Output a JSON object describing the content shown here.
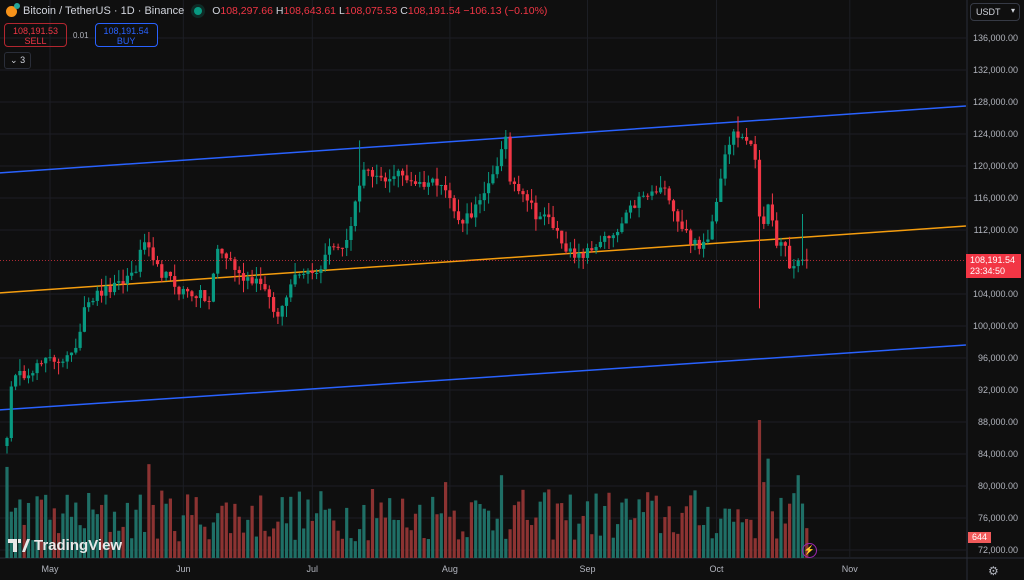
{
  "header": {
    "symbol": "Bitcoin / TetherUS · 1D · Binance",
    "open_label": "O",
    "open": "108,297.66",
    "high_label": "H",
    "high": "108,643.61",
    "low_label": "L",
    "low": "108,075.53",
    "close_label": "C",
    "close": "108,191.54",
    "change": "−106.13 (−0.10%)"
  },
  "trade": {
    "sell_price": "108,191.53",
    "sell_label": "SELL",
    "spread": "0.01",
    "buy_price": "108,191.54",
    "buy_label": "BUY"
  },
  "indicators_toggle": "3",
  "currency": "USDT",
  "price_axis": [
    "136,000.00",
    "132,000.00",
    "128,000.00",
    "124,000.00",
    "120,000.00",
    "116,000.00",
    "112,000.00",
    "104,000.00",
    "100,000.00",
    "96,000.00",
    "92,000.00",
    "88,000.00",
    "84,000.00",
    "80,000.00",
    "76,000.00",
    "72,000.00"
  ],
  "current_price": {
    "price": "108,191.54",
    "countdown": "23:34:50"
  },
  "volume_badge": "644",
  "time_axis": [
    {
      "label": "May",
      "day": 10
    },
    {
      "label": "Jun",
      "day": 41
    },
    {
      "label": "Jul",
      "day": 71
    },
    {
      "label": "Aug",
      "day": 103
    },
    {
      "label": "Sep",
      "day": 135
    },
    {
      "label": "Oct",
      "day": 165
    },
    {
      "label": "Nov",
      "day": 196
    }
  ],
  "logo": "TradingView",
  "colors": {
    "up": "#089981",
    "down": "#f23645",
    "vol_up": "#1f6f66",
    "vol_down": "#8c3332",
    "channel": "#2962ff",
    "midline": "#f59d0e",
    "bg": "#0f0f0f"
  },
  "chart_data": {
    "type": "candlestick",
    "price_range": [
      72000,
      140500
    ],
    "current_price": 108191.54,
    "close_keypoints": [
      [
        0,
        86000
      ],
      [
        1,
        93000
      ],
      [
        5,
        94500
      ],
      [
        10,
        95700
      ],
      [
        15,
        96000
      ],
      [
        17,
        99500
      ],
      [
        18,
        103000
      ],
      [
        22,
        104200
      ],
      [
        26,
        105000
      ],
      [
        30,
        107200
      ],
      [
        32,
        110700
      ],
      [
        34,
        107600
      ],
      [
        38,
        105700
      ],
      [
        40,
        104500
      ],
      [
        45,
        103800
      ],
      [
        47,
        103000
      ],
      [
        49,
        109500
      ],
      [
        52,
        108200
      ],
      [
        54,
        106300
      ],
      [
        59,
        105700
      ],
      [
        61,
        103000
      ],
      [
        63,
        101000
      ],
      [
        66,
        105700
      ],
      [
        68,
        107000
      ],
      [
        73,
        107000
      ],
      [
        74,
        109500
      ],
      [
        79,
        110200
      ],
      [
        81,
        115700
      ],
      [
        83,
        119000
      ],
      [
        87,
        118300
      ],
      [
        91,
        119000
      ],
      [
        96,
        117800
      ],
      [
        101,
        118300
      ],
      [
        103,
        115800
      ],
      [
        105,
        113000
      ],
      [
        108,
        114200
      ],
      [
        111,
        116000
      ],
      [
        113,
        119200
      ],
      [
        116,
        123000
      ],
      [
        117,
        118300
      ],
      [
        120,
        117000
      ],
      [
        123,
        114000
      ],
      [
        126,
        113300
      ],
      [
        129,
        110800
      ],
      [
        132,
        108300
      ],
      [
        136,
        109500
      ],
      [
        138,
        110800
      ],
      [
        141,
        110800
      ],
      [
        145,
        114500
      ],
      [
        147,
        115800
      ],
      [
        152,
        117000
      ],
      [
        154,
        116400
      ],
      [
        156,
        113300
      ],
      [
        159,
        110800
      ],
      [
        161,
        109500
      ],
      [
        163,
        111400
      ],
      [
        165,
        115800
      ],
      [
        167,
        122000
      ],
      [
        169,
        124000
      ],
      [
        172,
        123400
      ],
      [
        174,
        121000
      ],
      [
        175,
        114000
      ],
      [
        176,
        113300
      ],
      [
        177,
        114500
      ],
      [
        179,
        110700
      ],
      [
        181,
        109500
      ],
      [
        182,
        107000
      ],
      [
        184,
        108200
      ],
      [
        186,
        108191
      ]
    ],
    "wick_overrides": [
      {
        "day": 175,
        "low": 102200
      },
      {
        "day": 116,
        "high": 124500
      },
      {
        "day": 170,
        "high": 126200
      },
      {
        "day": 82,
        "high": 123200
      },
      {
        "day": 185,
        "high": 114000
      }
    ],
    "volume_spikes": [
      [
        175,
        1.0
      ],
      [
        33,
        0.68
      ],
      [
        102,
        0.55
      ],
      [
        115,
        0.6
      ],
      [
        177,
        0.72
      ],
      [
        184,
        0.6
      ],
      [
        0,
        0.66
      ],
      [
        85,
        0.5
      ],
      [
        176,
        0.55
      ]
    ],
    "trendlines": [
      {
        "name": "upper-channel",
        "color": "channel",
        "from": [
          -2,
          119125
        ],
        "to": [
          223,
          127500
        ]
      },
      {
        "name": "midline",
        "color": "midline",
        "from": [
          -2,
          104125
        ],
        "to": [
          223,
          112500
        ]
      },
      {
        "name": "lower-channel",
        "color": "channel",
        "from": [
          -2,
          89500
        ],
        "to": [
          223,
          97625
        ]
      }
    ]
  }
}
